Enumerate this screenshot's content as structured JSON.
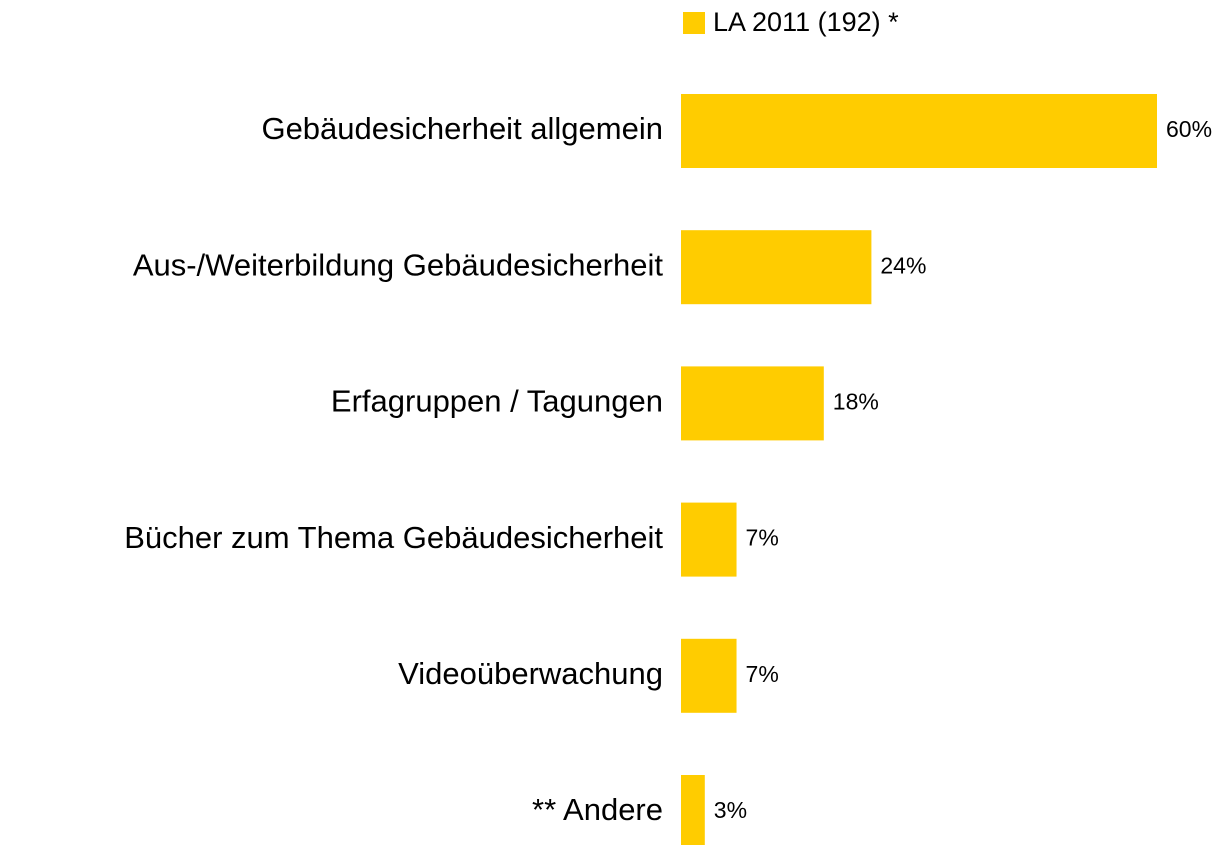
{
  "chart_data": {
    "type": "hbar",
    "categories": [
      "Gebäudesicherheit allgemein",
      "Aus-/Weiterbildung Gebäudesicherheit",
      "Erfagruppen / Tagungen",
      "Bücher zum Thema Gebäudesicherheit",
      "Videoüberwachung",
      "** Andere"
    ],
    "series": [
      {
        "name": "LA 2011 (192) *",
        "color": "#ffcc00",
        "values": [
          60,
          24,
          18,
          7,
          7,
          3
        ],
        "value_labels": [
          "60%",
          "24%",
          "18%",
          "7%",
          "7%",
          "3%"
        ]
      }
    ],
    "legend": "top"
  }
}
